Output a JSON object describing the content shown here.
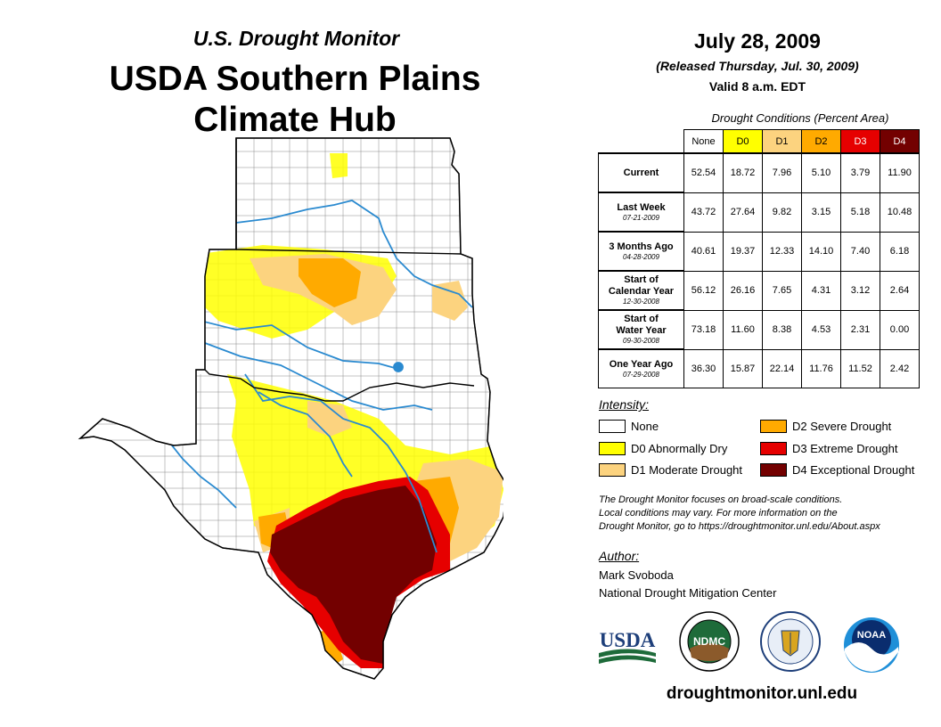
{
  "header": {
    "subtitle": "U.S. Drought Monitor",
    "title_line1": "USDA Southern Plains",
    "title_line2": "Climate Hub"
  },
  "date": {
    "main": "July 28, 2009",
    "released": "(Released Thursday, Jul. 30, 2009)",
    "valid": "Valid 8 a.m. EDT"
  },
  "table": {
    "caption": "Drought Conditions (Percent Area)",
    "columns": [
      {
        "label": "None",
        "color": "#ffffff"
      },
      {
        "label": "D0",
        "color": "#ffff00"
      },
      {
        "label": "D1",
        "color": "#fcd37f"
      },
      {
        "label": "D2",
        "color": "#ffaa00"
      },
      {
        "label": "D3",
        "color": "#e60000"
      },
      {
        "label": "D4",
        "color": "#730000"
      }
    ],
    "rows": [
      {
        "name_line1": "Current",
        "name_line2": "",
        "date": "",
        "values": [
          "52.54",
          "18.72",
          "7.96",
          "5.10",
          "3.79",
          "11.90"
        ]
      },
      {
        "name_line1": "Last Week",
        "name_line2": "",
        "date": "07-21-2009",
        "values": [
          "43.72",
          "27.64",
          "9.82",
          "3.15",
          "5.18",
          "10.48"
        ]
      },
      {
        "name_line1": "3 Months Ago",
        "name_line2": "",
        "date": "04-28-2009",
        "values": [
          "40.61",
          "19.37",
          "12.33",
          "14.10",
          "7.40",
          "6.18"
        ]
      },
      {
        "name_line1": "Start of",
        "name_line2": "Calendar Year",
        "date": "12-30-2008",
        "values": [
          "56.12",
          "26.16",
          "7.65",
          "4.31",
          "3.12",
          "2.64"
        ]
      },
      {
        "name_line1": "Start of",
        "name_line2": "Water Year",
        "date": "09-30-2008",
        "values": [
          "73.18",
          "11.60",
          "8.38",
          "4.53",
          "2.31",
          "0.00"
        ]
      },
      {
        "name_line1": "One Year Ago",
        "name_line2": "",
        "date": "07-29-2008",
        "values": [
          "36.30",
          "15.87",
          "22.14",
          "11.76",
          "11.52",
          "2.42"
        ]
      }
    ]
  },
  "legend": {
    "title": "Intensity:",
    "items": [
      {
        "label": "None",
        "color": "#ffffff"
      },
      {
        "label": "D0 Abnormally Dry",
        "color": "#ffff00"
      },
      {
        "label": "D1 Moderate Drought",
        "color": "#fcd37f"
      },
      {
        "label": "D2 Severe Drought",
        "color": "#ffaa00"
      },
      {
        "label": "D3 Extreme Drought",
        "color": "#e60000"
      },
      {
        "label": "D4 Exceptional Drought",
        "color": "#730000"
      }
    ]
  },
  "note": {
    "line1": "The Drought Monitor focuses on broad-scale conditions.",
    "line2": "Local conditions may vary. For more information on the",
    "line3": "Drought Monitor, go to https://droughtmonitor.unl.edu/About.aspx"
  },
  "author": {
    "title": "Author:",
    "name": "Mark Svoboda",
    "org": "National Drought Mitigation Center"
  },
  "logos": {
    "usda": "USDA",
    "ndmc": "NDMC",
    "noaa": "NOAA"
  },
  "website": "droughtmonitor.unl.edu"
}
